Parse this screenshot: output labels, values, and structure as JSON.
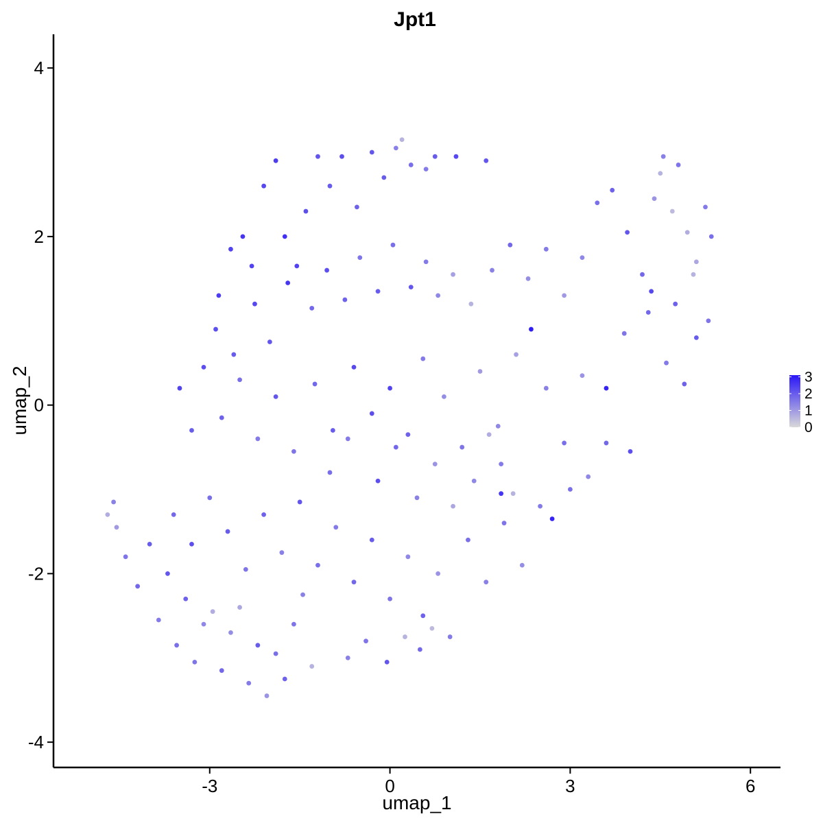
{
  "chart_data": {
    "type": "scatter",
    "title": "Jpt1",
    "xlabel": "umap_1",
    "ylabel": "umap_2",
    "xlim": [
      -5.6,
      6.5
    ],
    "ylim": [
      -4.3,
      4.4
    ],
    "xticks": [
      -3,
      0,
      3,
      6
    ],
    "yticks": [
      -4,
      -2,
      0,
      2,
      4
    ],
    "xtick_labels": [
      "-3",
      "0",
      "3",
      "6"
    ],
    "ytick_labels": [
      "-4",
      "-2",
      "0",
      "2",
      "4"
    ],
    "grid": false,
    "legend": {
      "placement": "right",
      "type": "colorbar",
      "ticks": [
        0,
        1,
        2,
        3
      ],
      "labels": [
        "0",
        "1",
        "2",
        "3"
      ],
      "range": [
        0,
        3.1
      ],
      "low_color": "#d9d9d9",
      "high_color": "#2a17f7"
    },
    "point_color_low": "#d9d9d9",
    "point_color_high": "#2a17f7",
    "points": [
      {
        "x": -2.45,
        "y": 2.0,
        "v": 2.6
      },
      {
        "x": -2.3,
        "y": 1.65,
        "v": 2.4
      },
      {
        "x": -2.1,
        "y": 2.6,
        "v": 2.3
      },
      {
        "x": -1.9,
        "y": 2.9,
        "v": 2.5
      },
      {
        "x": -1.75,
        "y": 2.0,
        "v": 2.7
      },
      {
        "x": -1.55,
        "y": 1.65,
        "v": 2.4
      },
      {
        "x": -1.4,
        "y": 2.3,
        "v": 2.2
      },
      {
        "x": -1.2,
        "y": 2.95,
        "v": 2.1
      },
      {
        "x": -1.0,
        "y": 2.6,
        "v": 2.0
      },
      {
        "x": -0.8,
        "y": 2.95,
        "v": 2.2
      },
      {
        "x": -0.55,
        "y": 2.35,
        "v": 1.9
      },
      {
        "x": -0.3,
        "y": 3.0,
        "v": 2.1
      },
      {
        "x": -0.1,
        "y": 2.7,
        "v": 2.0
      },
      {
        "x": 0.1,
        "y": 3.05,
        "v": 1.4
      },
      {
        "x": 0.2,
        "y": 3.15,
        "v": 0.6
      },
      {
        "x": 0.35,
        "y": 2.85,
        "v": 1.7
      },
      {
        "x": 0.6,
        "y": 2.8,
        "v": 1.5
      },
      {
        "x": 0.75,
        "y": 2.95,
        "v": 2.0
      },
      {
        "x": 1.1,
        "y": 2.95,
        "v": 2.3
      },
      {
        "x": 1.6,
        "y": 2.9,
        "v": 2.1
      },
      {
        "x": -2.85,
        "y": 1.3,
        "v": 2.5
      },
      {
        "x": -2.65,
        "y": 1.85,
        "v": 2.4
      },
      {
        "x": -2.9,
        "y": 0.9,
        "v": 2.2
      },
      {
        "x": -2.6,
        "y": 0.6,
        "v": 2.0
      },
      {
        "x": -2.25,
        "y": 1.2,
        "v": 2.3
      },
      {
        "x": -2.0,
        "y": 0.75,
        "v": 2.1
      },
      {
        "x": -1.7,
        "y": 1.45,
        "v": 2.6
      },
      {
        "x": -1.3,
        "y": 1.15,
        "v": 1.8
      },
      {
        "x": -1.05,
        "y": 1.6,
        "v": 2.2
      },
      {
        "x": -0.75,
        "y": 1.25,
        "v": 1.9
      },
      {
        "x": -0.5,
        "y": 1.75,
        "v": 1.6
      },
      {
        "x": -0.2,
        "y": 1.35,
        "v": 2.0
      },
      {
        "x": 0.05,
        "y": 1.9,
        "v": 1.7
      },
      {
        "x": 0.35,
        "y": 1.4,
        "v": 2.1
      },
      {
        "x": 0.6,
        "y": 1.7,
        "v": 1.5
      },
      {
        "x": 0.8,
        "y": 1.3,
        "v": 1.3
      },
      {
        "x": 1.05,
        "y": 1.55,
        "v": 0.9
      },
      {
        "x": 1.35,
        "y": 1.2,
        "v": 0.6
      },
      {
        "x": 1.7,
        "y": 1.6,
        "v": 1.4
      },
      {
        "x": 2.0,
        "y": 1.9,
        "v": 1.8
      },
      {
        "x": -3.5,
        "y": 0.2,
        "v": 2.4
      },
      {
        "x": -3.3,
        "y": -0.3,
        "v": 2.0
      },
      {
        "x": -3.1,
        "y": 0.45,
        "v": 2.2
      },
      {
        "x": -2.8,
        "y": -0.15,
        "v": 1.9
      },
      {
        "x": -2.5,
        "y": 0.3,
        "v": 1.7
      },
      {
        "x": -2.2,
        "y": -0.4,
        "v": 1.5
      },
      {
        "x": -1.9,
        "y": 0.1,
        "v": 2.1
      },
      {
        "x": -1.6,
        "y": -0.55,
        "v": 1.6
      },
      {
        "x": -1.25,
        "y": 0.25,
        "v": 1.8
      },
      {
        "x": -0.95,
        "y": -0.3,
        "v": 2.0
      },
      {
        "x": -0.6,
        "y": 0.45,
        "v": 2.3
      },
      {
        "x": -0.3,
        "y": -0.1,
        "v": 2.2
      },
      {
        "x": 0.0,
        "y": 0.2,
        "v": 2.4
      },
      {
        "x": 0.3,
        "y": -0.35,
        "v": 1.9
      },
      {
        "x": 0.55,
        "y": 0.55,
        "v": 1.5
      },
      {
        "x": 0.9,
        "y": 0.1,
        "v": 1.2
      },
      {
        "x": 1.2,
        "y": -0.5,
        "v": 1.6
      },
      {
        "x": 1.5,
        "y": 0.4,
        "v": 1.0
      },
      {
        "x": 1.8,
        "y": -0.25,
        "v": 1.3
      },
      {
        "x": 2.1,
        "y": 0.6,
        "v": 0.9
      },
      {
        "x": 2.35,
        "y": 0.9,
        "v": 3.0
      },
      {
        "x": 2.6,
        "y": 0.2,
        "v": 1.4
      },
      {
        "x": 2.9,
        "y": -0.45,
        "v": 1.7
      },
      {
        "x": 3.2,
        "y": 0.35,
        "v": 1.1
      },
      {
        "x": 3.6,
        "y": 0.2,
        "v": 2.9
      },
      {
        "x": 3.9,
        "y": 0.85,
        "v": 1.6
      },
      {
        "x": 4.3,
        "y": 1.1,
        "v": 1.8
      },
      {
        "x": 4.6,
        "y": 0.5,
        "v": 1.5
      },
      {
        "x": 4.9,
        "y": 0.25,
        "v": 1.9
      },
      {
        "x": 5.1,
        "y": 0.8,
        "v": 2.0
      },
      {
        "x": 5.3,
        "y": 1.0,
        "v": 1.6
      },
      {
        "x": 4.0,
        "y": -0.55,
        "v": 2.2
      },
      {
        "x": 2.3,
        "y": 1.5,
        "v": 1.2
      },
      {
        "x": 2.6,
        "y": 1.85,
        "v": 1.5
      },
      {
        "x": 2.9,
        "y": 1.3,
        "v": 1.0
      },
      {
        "x": 3.2,
        "y": 1.75,
        "v": 1.3
      },
      {
        "x": 3.45,
        "y": 2.4,
        "v": 1.7
      },
      {
        "x": 3.7,
        "y": 2.55,
        "v": 1.9
      },
      {
        "x": 3.95,
        "y": 2.05,
        "v": 2.1
      },
      {
        "x": 4.2,
        "y": 1.55,
        "v": 1.8
      },
      {
        "x": 4.4,
        "y": 2.45,
        "v": 1.1
      },
      {
        "x": 4.5,
        "y": 2.75,
        "v": 0.6
      },
      {
        "x": 4.55,
        "y": 2.95,
        "v": 1.4
      },
      {
        "x": 4.7,
        "y": 2.3,
        "v": 0.5
      },
      {
        "x": 4.8,
        "y": 2.85,
        "v": 1.6
      },
      {
        "x": 4.95,
        "y": 2.05,
        "v": 0.7
      },
      {
        "x": 5.1,
        "y": 1.7,
        "v": 0.8
      },
      {
        "x": 5.25,
        "y": 2.35,
        "v": 1.5
      },
      {
        "x": 5.35,
        "y": 2.0,
        "v": 1.7
      },
      {
        "x": 5.05,
        "y": 1.55,
        "v": 0.6
      },
      {
        "x": 4.75,
        "y": 1.2,
        "v": 1.9
      },
      {
        "x": 4.35,
        "y": 1.35,
        "v": 2.3
      },
      {
        "x": -4.7,
        "y": -1.3,
        "v": 0.7
      },
      {
        "x": -4.6,
        "y": -1.15,
        "v": 1.4
      },
      {
        "x": -4.55,
        "y": -1.45,
        "v": 1.0
      },
      {
        "x": -4.4,
        "y": -1.8,
        "v": 1.6
      },
      {
        "x": -4.2,
        "y": -2.15,
        "v": 1.8
      },
      {
        "x": -4.0,
        "y": -1.65,
        "v": 2.0
      },
      {
        "x": -3.85,
        "y": -2.55,
        "v": 1.5
      },
      {
        "x": -3.7,
        "y": -2.0,
        "v": 2.1
      },
      {
        "x": -3.55,
        "y": -2.85,
        "v": 1.7
      },
      {
        "x": -3.4,
        "y": -2.3,
        "v": 1.9
      },
      {
        "x": -3.25,
        "y": -3.05,
        "v": 1.6
      },
      {
        "x": -3.1,
        "y": -2.6,
        "v": 1.3
      },
      {
        "x": -2.95,
        "y": -2.45,
        "v": 0.7
      },
      {
        "x": -2.8,
        "y": -3.15,
        "v": 1.8
      },
      {
        "x": -2.65,
        "y": -2.7,
        "v": 1.2
      },
      {
        "x": -2.5,
        "y": -2.4,
        "v": 0.8
      },
      {
        "x": -2.35,
        "y": -3.3,
        "v": 1.5
      },
      {
        "x": -2.2,
        "y": -2.85,
        "v": 2.0
      },
      {
        "x": -2.05,
        "y": -3.45,
        "v": 1.1
      },
      {
        "x": -1.9,
        "y": -2.95,
        "v": 1.7
      },
      {
        "x": -1.75,
        "y": -3.25,
        "v": 1.9
      },
      {
        "x": -1.6,
        "y": -2.6,
        "v": 1.6
      },
      {
        "x": -1.45,
        "y": -2.25,
        "v": 1.4
      },
      {
        "x": -1.3,
        "y": -3.1,
        "v": 0.6
      },
      {
        "x": -3.6,
        "y": -1.3,
        "v": 1.8
      },
      {
        "x": -3.3,
        "y": -1.65,
        "v": 2.2
      },
      {
        "x": -3.0,
        "y": -1.1,
        "v": 1.7
      },
      {
        "x": -2.7,
        "y": -1.5,
        "v": 2.0
      },
      {
        "x": -2.4,
        "y": -1.95,
        "v": 1.6
      },
      {
        "x": -2.1,
        "y": -1.3,
        "v": 1.9
      },
      {
        "x": -1.8,
        "y": -1.75,
        "v": 1.4
      },
      {
        "x": -1.5,
        "y": -1.15,
        "v": 2.1
      },
      {
        "x": -1.2,
        "y": -1.9,
        "v": 1.7
      },
      {
        "x": -0.9,
        "y": -1.45,
        "v": 1.5
      },
      {
        "x": -0.6,
        "y": -2.1,
        "v": 1.8
      },
      {
        "x": -0.3,
        "y": -1.6,
        "v": 2.0
      },
      {
        "x": 0.0,
        "y": -2.3,
        "v": 1.6
      },
      {
        "x": 0.3,
        "y": -1.8,
        "v": 1.3
      },
      {
        "x": 0.55,
        "y": -2.5,
        "v": 1.9
      },
      {
        "x": 0.8,
        "y": -2.0,
        "v": 1.1
      },
      {
        "x": 1.0,
        "y": -2.75,
        "v": 1.5
      },
      {
        "x": 1.3,
        "y": -1.6,
        "v": 1.7
      },
      {
        "x": 1.6,
        "y": -2.1,
        "v": 1.4
      },
      {
        "x": 1.9,
        "y": -1.4,
        "v": 1.6
      },
      {
        "x": 2.2,
        "y": -1.9,
        "v": 1.2
      },
      {
        "x": 2.5,
        "y": -1.2,
        "v": 1.5
      },
      {
        "x": 2.7,
        "y": -1.35,
        "v": 2.9
      },
      {
        "x": 3.0,
        "y": -1.0,
        "v": 1.7
      },
      {
        "x": 3.3,
        "y": -0.85,
        "v": 1.3
      },
      {
        "x": 3.6,
        "y": -0.45,
        "v": 1.8
      },
      {
        "x": -0.7,
        "y": -3.0,
        "v": 1.4
      },
      {
        "x": -0.4,
        "y": -2.8,
        "v": 1.6
      },
      {
        "x": -0.05,
        "y": -3.05,
        "v": 2.1
      },
      {
        "x": 0.25,
        "y": -2.75,
        "v": 0.6
      },
      {
        "x": 0.5,
        "y": -2.9,
        "v": 1.8
      },
      {
        "x": 0.7,
        "y": -2.65,
        "v": 0.5
      },
      {
        "x": -1.0,
        "y": -0.8,
        "v": 1.7
      },
      {
        "x": -0.7,
        "y": -0.4,
        "v": 1.5
      },
      {
        "x": -0.2,
        "y": -0.9,
        "v": 2.2
      },
      {
        "x": 0.1,
        "y": -0.5,
        "v": 1.8
      },
      {
        "x": 0.45,
        "y": -1.1,
        "v": 1.4
      },
      {
        "x": 0.75,
        "y": -0.7,
        "v": 1.1
      },
      {
        "x": 1.05,
        "y": -1.2,
        "v": 0.8
      },
      {
        "x": 1.4,
        "y": -0.9,
        "v": 1.3
      },
      {
        "x": 1.65,
        "y": -0.35,
        "v": 0.7
      },
      {
        "x": 1.85,
        "y": -0.7,
        "v": 1.5
      },
      {
        "x": 2.05,
        "y": -1.05,
        "v": 0.6
      },
      {
        "x": 1.85,
        "y": -1.05,
        "v": 2.6
      }
    ]
  }
}
